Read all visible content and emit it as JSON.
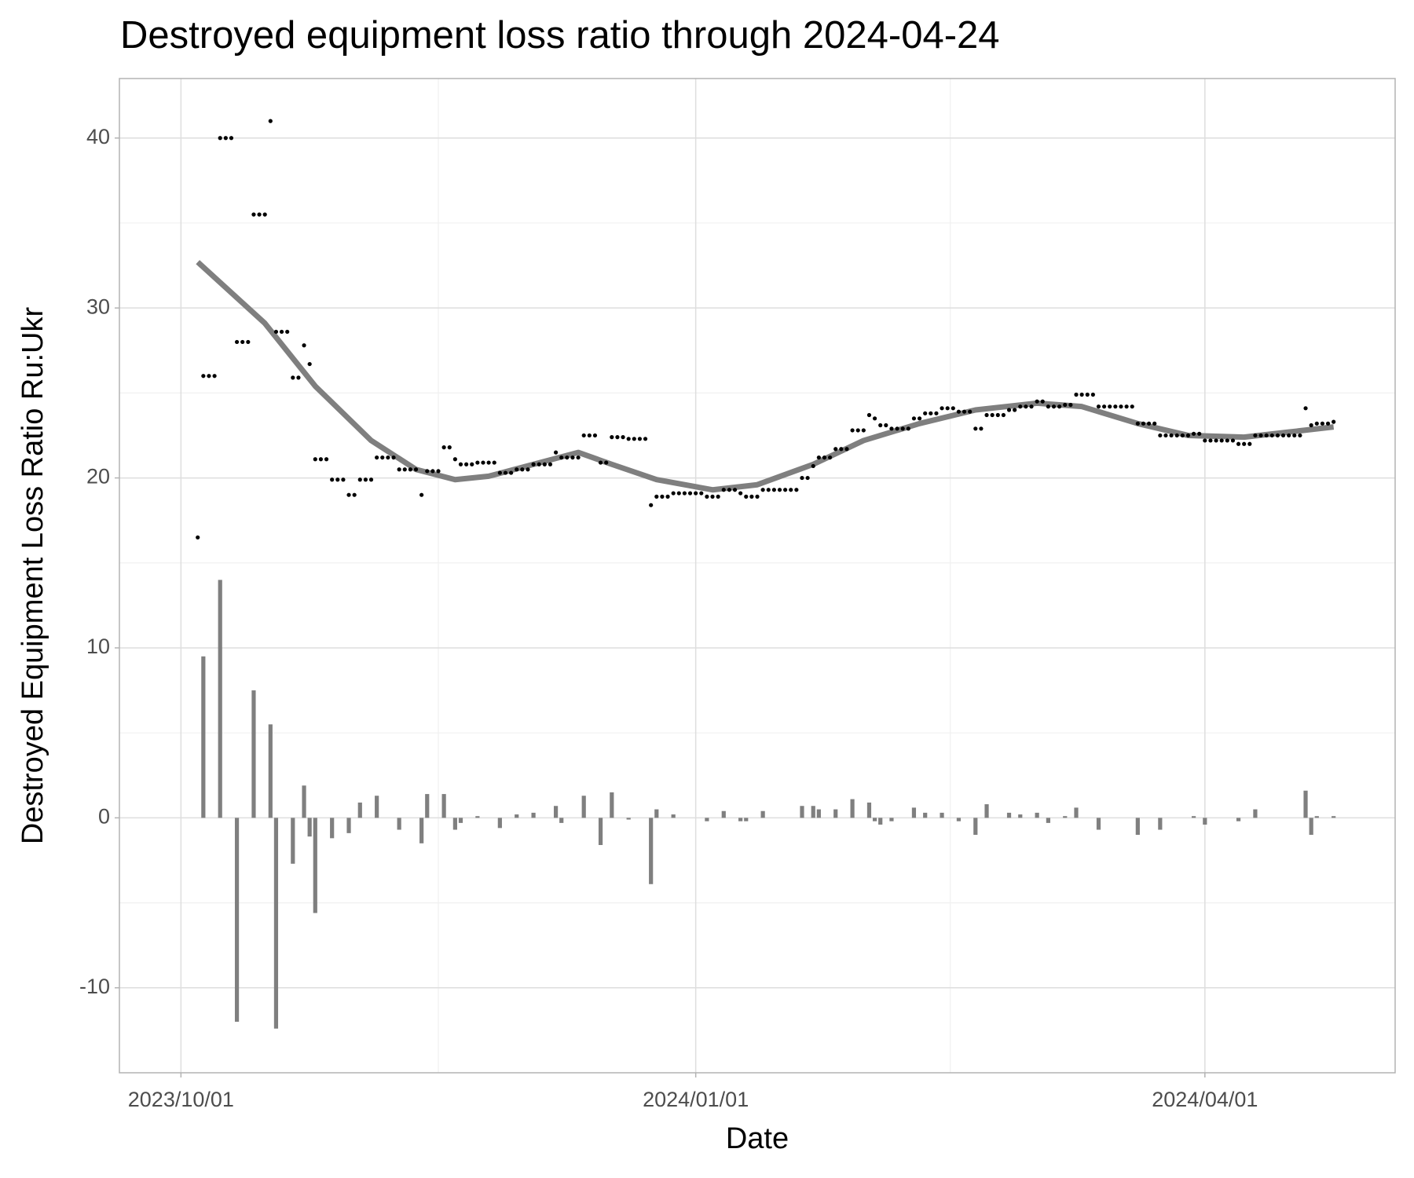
{
  "chart_data": {
    "type": "scatter",
    "title": "Destroyed equipment loss ratio through 2024-04-24",
    "x_label": "Date",
    "y_label": "Destroyed Equipment Loss Ratio Ru:Ukr",
    "xlim": [
      "2023-09-20",
      "2024-05-05"
    ],
    "xticks": [
      {
        "value": "2023-10-01",
        "label": "2023/10/01"
      },
      {
        "value": "2024-01-01",
        "label": "2024/01/01"
      },
      {
        "value": "2024-04-01",
        "label": "2024/04/01"
      }
    ],
    "ylim": [
      -15,
      43.5
    ],
    "yticks": [
      -10,
      0,
      10,
      20,
      30,
      40
    ],
    "grid": true,
    "series": [
      {
        "type": "bar",
        "color": "#7f7f7f",
        "x": [
          "2023-10-05",
          "2023-10-08",
          "2023-10-11",
          "2023-10-14",
          "2023-10-17",
          "2023-10-18",
          "2023-10-21",
          "2023-10-23",
          "2023-10-24",
          "2023-10-25",
          "2023-10-28",
          "2023-10-31",
          "2023-11-02",
          "2023-11-05",
          "2023-11-09",
          "2023-11-13",
          "2023-11-14",
          "2023-11-17",
          "2023-11-19",
          "2023-11-20",
          "2023-11-23",
          "2023-11-27",
          "2023-11-30",
          "2023-12-03",
          "2023-12-07",
          "2023-12-08",
          "2023-12-12",
          "2023-12-15",
          "2023-12-17",
          "2023-12-20",
          "2023-12-24",
          "2023-12-25",
          "2023-12-28",
          "2024-01-03",
          "2024-01-06",
          "2024-01-09",
          "2024-01-10",
          "2024-01-13",
          "2024-01-20",
          "2024-01-22",
          "2024-01-23",
          "2024-01-26",
          "2024-01-29",
          "2024-02-01",
          "2024-02-02",
          "2024-02-03",
          "2024-02-05",
          "2024-02-09",
          "2024-02-11",
          "2024-02-14",
          "2024-02-17",
          "2024-02-20",
          "2024-02-22",
          "2024-02-26",
          "2024-02-28",
          "2024-03-02",
          "2024-03-04",
          "2024-03-07",
          "2024-03-09",
          "2024-03-13",
          "2024-03-20",
          "2024-03-24",
          "2024-03-30",
          "2024-04-01",
          "2024-04-07",
          "2024-04-10",
          "2024-04-19",
          "2024-04-20",
          "2024-04-21",
          "2024-04-24"
        ],
        "values": [
          9.5,
          14.0,
          -12.0,
          7.5,
          5.5,
          -12.4,
          -2.7,
          1.9,
          -1.1,
          -5.6,
          -1.2,
          -0.9,
          0.9,
          1.3,
          -0.7,
          -1.5,
          1.4,
          1.4,
          -0.7,
          -0.3,
          0.1,
          -0.6,
          0.2,
          0.3,
          0.7,
          -0.3,
          1.3,
          -1.6,
          1.5,
          -0.1,
          -3.9,
          0.5,
          0.2,
          -0.2,
          0.4,
          -0.2,
          -0.2,
          0.4,
          0.7,
          0.7,
          0.5,
          0.5,
          1.1,
          0.9,
          -0.2,
          -0.4,
          -0.2,
          0.6,
          0.3,
          0.3,
          -0.2,
          -1.0,
          0.8,
          0.3,
          0.2,
          0.3,
          -0.3,
          0.1,
          0.6,
          -0.7,
          -1.0,
          -0.7,
          0.1,
          -0.4,
          -0.2,
          0.5,
          1.6,
          -1.0,
          0.1,
          0.1
        ]
      },
      {
        "type": "line",
        "color": "#7f7f7f",
        "x": [
          "2023-10-04",
          "2023-10-16",
          "2023-10-25",
          "2023-11-04",
          "2023-11-12",
          "2023-11-19",
          "2023-11-25",
          "2023-12-03",
          "2023-12-11",
          "2023-12-17",
          "2023-12-25",
          "2024-01-04",
          "2024-01-12",
          "2024-01-22",
          "2024-01-31",
          "2024-02-10",
          "2024-02-20",
          "2024-03-02",
          "2024-03-10",
          "2024-03-20",
          "2024-03-29",
          "2024-04-08",
          "2024-04-16",
          "2024-04-24"
        ],
        "values": [
          32.7,
          29.1,
          25.4,
          22.2,
          20.5,
          19.9,
          20.1,
          20.8,
          21.5,
          20.8,
          19.9,
          19.3,
          19.6,
          20.8,
          22.2,
          23.2,
          24.0,
          24.4,
          24.2,
          23.2,
          22.5,
          22.4,
          22.7,
          23.0
        ]
      },
      {
        "type": "scatter",
        "color": "#000000",
        "x": [
          "2023-10-04",
          "2023-10-05",
          "2023-10-06",
          "2023-10-07",
          "2023-10-08",
          "2023-10-09",
          "2023-10-10",
          "2023-10-11",
          "2023-10-12",
          "2023-10-13",
          "2023-10-14",
          "2023-10-15",
          "2023-10-16",
          "2023-10-17",
          "2023-10-18",
          "2023-10-19",
          "2023-10-20",
          "2023-10-21",
          "2023-10-22",
          "2023-10-23",
          "2023-10-24",
          "2023-10-25",
          "2023-10-26",
          "2023-10-27",
          "2023-10-28",
          "2023-10-29",
          "2023-10-30",
          "2023-10-31",
          "2023-11-01",
          "2023-11-02",
          "2023-11-03",
          "2023-11-04",
          "2023-11-05",
          "2023-11-06",
          "2023-11-07",
          "2023-11-08",
          "2023-11-09",
          "2023-11-10",
          "2023-11-11",
          "2023-11-12",
          "2023-11-13",
          "2023-11-14",
          "2023-11-15",
          "2023-11-16",
          "2023-11-17",
          "2023-11-18",
          "2023-11-19",
          "2023-11-20",
          "2023-11-21",
          "2023-11-22",
          "2023-11-23",
          "2023-11-24",
          "2023-11-25",
          "2023-11-26",
          "2023-11-27",
          "2023-11-28",
          "2023-11-29",
          "2023-11-30",
          "2023-12-01",
          "2023-12-02",
          "2023-12-03",
          "2023-12-04",
          "2023-12-05",
          "2023-12-06",
          "2023-12-07",
          "2023-12-08",
          "2023-12-09",
          "2023-12-10",
          "2023-12-11",
          "2023-12-12",
          "2023-12-13",
          "2023-12-14",
          "2023-12-15",
          "2023-12-16",
          "2023-12-17",
          "2023-12-18",
          "2023-12-19",
          "2023-12-20",
          "2023-12-21",
          "2023-12-22",
          "2023-12-23",
          "2023-12-24",
          "2023-12-25",
          "2023-12-26",
          "2023-12-27",
          "2023-12-28",
          "2023-12-29",
          "2023-12-30",
          "2023-12-31",
          "2024-01-01",
          "2024-01-02",
          "2024-01-03",
          "2024-01-04",
          "2024-01-05",
          "2024-01-06",
          "2024-01-07",
          "2024-01-08",
          "2024-01-09",
          "2024-01-10",
          "2024-01-11",
          "2024-01-12",
          "2024-01-13",
          "2024-01-14",
          "2024-01-15",
          "2024-01-16",
          "2024-01-17",
          "2024-01-18",
          "2024-01-19",
          "2024-01-20",
          "2024-01-21",
          "2024-01-22",
          "2024-01-23",
          "2024-01-24",
          "2024-01-25",
          "2024-01-26",
          "2024-01-27",
          "2024-01-28",
          "2024-01-29",
          "2024-01-30",
          "2024-01-31",
          "2024-02-01",
          "2024-02-02",
          "2024-02-03",
          "2024-02-04",
          "2024-02-05",
          "2024-02-06",
          "2024-02-07",
          "2024-02-08",
          "2024-02-09",
          "2024-02-10",
          "2024-02-11",
          "2024-02-12",
          "2024-02-13",
          "2024-02-14",
          "2024-02-15",
          "2024-02-16",
          "2024-02-17",
          "2024-02-18",
          "2024-02-19",
          "2024-02-20",
          "2024-02-21",
          "2024-02-22",
          "2024-02-23",
          "2024-02-24",
          "2024-02-25",
          "2024-02-26",
          "2024-02-27",
          "2024-02-28",
          "2024-02-29",
          "2024-03-01",
          "2024-03-02",
          "2024-03-03",
          "2024-03-04",
          "2024-03-05",
          "2024-03-06",
          "2024-03-07",
          "2024-03-08",
          "2024-03-09",
          "2024-03-10",
          "2024-03-11",
          "2024-03-12",
          "2024-03-13",
          "2024-03-14",
          "2024-03-15",
          "2024-03-16",
          "2024-03-17",
          "2024-03-18",
          "2024-03-19",
          "2024-03-20",
          "2024-03-21",
          "2024-03-22",
          "2024-03-23",
          "2024-03-24",
          "2024-03-25",
          "2024-03-26",
          "2024-03-27",
          "2024-03-28",
          "2024-03-29",
          "2024-03-30",
          "2024-03-31",
          "2024-04-01",
          "2024-04-02",
          "2024-04-03",
          "2024-04-04",
          "2024-04-05",
          "2024-04-06",
          "2024-04-07",
          "2024-04-08",
          "2024-04-09",
          "2024-04-10",
          "2024-04-11",
          "2024-04-12",
          "2024-04-13",
          "2024-04-14",
          "2024-04-15",
          "2024-04-16",
          "2024-04-17",
          "2024-04-18",
          "2024-04-19",
          "2024-04-20",
          "2024-04-21",
          "2024-04-22",
          "2024-04-23",
          "2024-04-24"
        ],
        "values": [
          16.5,
          26.0,
          26.0,
          26.0,
          40.0,
          40.0,
          40.0,
          28.0,
          28.0,
          28.0,
          35.5,
          35.5,
          35.5,
          41.0,
          28.6,
          28.6,
          28.6,
          25.9,
          25.9,
          27.8,
          26.7,
          21.1,
          21.1,
          21.1,
          19.9,
          19.9,
          19.9,
          19.0,
          19.0,
          19.9,
          19.9,
          19.9,
          21.2,
          21.2,
          21.2,
          21.2,
          20.5,
          20.5,
          20.5,
          20.5,
          19.0,
          20.4,
          20.4,
          20.4,
          21.8,
          21.8,
          21.1,
          20.8,
          20.8,
          20.8,
          20.9,
          20.9,
          20.9,
          20.9,
          20.3,
          20.3,
          20.3,
          20.5,
          20.5,
          20.5,
          20.8,
          20.8,
          20.8,
          20.8,
          21.5,
          21.2,
          21.2,
          21.2,
          21.2,
          22.5,
          22.5,
          22.5,
          20.9,
          20.9,
          22.4,
          22.4,
          22.4,
          22.3,
          22.3,
          22.3,
          22.3,
          18.4,
          18.9,
          18.9,
          18.9,
          19.1,
          19.1,
          19.1,
          19.1,
          19.1,
          19.1,
          18.9,
          18.9,
          18.9,
          19.3,
          19.3,
          19.3,
          19.1,
          18.9,
          18.9,
          18.9,
          19.3,
          19.3,
          19.3,
          19.3,
          19.3,
          19.3,
          19.3,
          20.0,
          20.0,
          20.7,
          21.2,
          21.2,
          21.2,
          21.7,
          21.7,
          21.7,
          22.8,
          22.8,
          22.8,
          23.7,
          23.5,
          23.1,
          23.1,
          22.9,
          22.9,
          22.9,
          22.9,
          23.5,
          23.5,
          23.8,
          23.8,
          23.8,
          24.1,
          24.1,
          24.1,
          23.9,
          23.9,
          23.9,
          22.9,
          22.9,
          23.7,
          23.7,
          23.7,
          23.7,
          24.0,
          24.0,
          24.2,
          24.2,
          24.2,
          24.5,
          24.5,
          24.2,
          24.2,
          24.2,
          24.3,
          24.3,
          24.9,
          24.9,
          24.9,
          24.9,
          24.2,
          24.2,
          24.2,
          24.2,
          24.2,
          24.2,
          24.2,
          23.2,
          23.2,
          23.2,
          23.2,
          22.5,
          22.5,
          22.5,
          22.5,
          22.5,
          22.5,
          22.6,
          22.6,
          22.2,
          22.2,
          22.2,
          22.2,
          22.2,
          22.2,
          22.0,
          22.0,
          22.0,
          22.5,
          22.5,
          22.5,
          22.5,
          22.5,
          22.5,
          22.5,
          22.5,
          22.5,
          24.1,
          23.1,
          23.2,
          23.2,
          23.2,
          23.3
        ]
      }
    ]
  }
}
